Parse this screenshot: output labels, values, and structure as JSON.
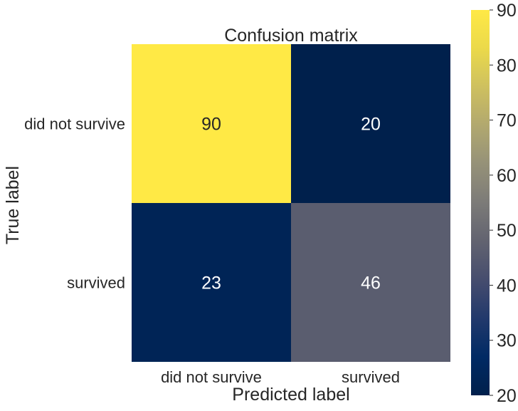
{
  "chart_data": {
    "type": "heatmap",
    "title": "Confusion matrix",
    "xlabel": "Predicted label",
    "ylabel": "True label",
    "x_categories": [
      "did not survive",
      "survived"
    ],
    "y_categories": [
      "did not survive",
      "survived"
    ],
    "values": [
      [
        90,
        20
      ],
      [
        23,
        46
      ]
    ],
    "colormap": "cividis",
    "colorbar": {
      "range": [
        20,
        90
      ],
      "ticks": [
        20,
        30,
        40,
        50,
        60,
        70,
        80,
        90
      ]
    },
    "colors": {
      "low": "#00204c",
      "high": "#ffe945",
      "cell_text_light": "#ffffff",
      "cell_text_dark": "#262626"
    },
    "grid": false,
    "legend": "colorbar-right"
  }
}
